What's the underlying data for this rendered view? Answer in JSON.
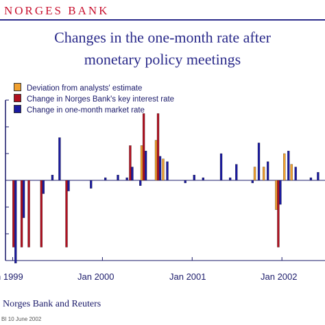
{
  "header": {
    "logo": "NORGES BANK",
    "title_line1": "Changes in the one-month rate after",
    "title_line2": "monetary policy meetings"
  },
  "legend": [
    {
      "label": "Deviation from analysts' estimate",
      "color": "#f0a030"
    },
    {
      "label": "Change in Norges Bank's key interest rate",
      "color": "#b01020"
    },
    {
      "label": "Change in one-month market rate",
      "color": "#1a1aa0"
    }
  ],
  "x_tick_labels": [
    "n 1999",
    "Jan 2000",
    "Jan 2001",
    "Jan 2002"
  ],
  "source_text": "Norges Bank and Reuters",
  "footnote_text": "BI 10 June 2002",
  "chart_data": {
    "type": "bar",
    "ylim": [
      -0.3,
      0.3
    ],
    "series_names": [
      "Deviation from analysts' estimate",
      "Change in Norges Bank's key interest rate",
      "Change in one-month market rate"
    ],
    "colors": [
      "#f0a030",
      "#b01020",
      "#1a1aa0"
    ],
    "meetings": [
      {
        "t": 1999.01,
        "dev": 0,
        "key": -0.25,
        "mkt": -0.31
      },
      {
        "t": 1999.1,
        "dev": 0,
        "key": -0.25,
        "mkt": -0.14
      },
      {
        "t": 1999.18,
        "dev": 0,
        "key": -0.25,
        "mkt": 0
      },
      {
        "t": 1999.32,
        "dev": 0,
        "key": -0.25,
        "mkt": -0.05
      },
      {
        "t": 1999.42,
        "dev": 0,
        "key": 0,
        "mkt": 0.02
      },
      {
        "t": 1999.5,
        "dev": 0,
        "key": 0,
        "mkt": 0.16
      },
      {
        "t": 1999.6,
        "dev": 0,
        "key": -0.25,
        "mkt": -0.04
      },
      {
        "t": 1999.85,
        "dev": 0,
        "key": 0,
        "mkt": -0.03
      },
      {
        "t": 2000.01,
        "dev": 0,
        "key": 0,
        "mkt": 0.01
      },
      {
        "t": 2000.15,
        "dev": 0,
        "key": 0,
        "mkt": 0.02
      },
      {
        "t": 2000.25,
        "dev": 0,
        "key": 0,
        "mkt": 0.01
      },
      {
        "t": 2000.31,
        "dev": 0,
        "key": 0.13,
        "mkt": 0.05
      },
      {
        "t": 2000.4,
        "dev": 0,
        "key": 0,
        "mkt": -0.02
      },
      {
        "t": 2000.46,
        "dev": 0.13,
        "key": 0.25,
        "mkt": 0.11
      },
      {
        "t": 2000.62,
        "dev": 0.15,
        "key": 0.25,
        "mkt": 0.09
      },
      {
        "t": 2000.7,
        "dev": 0.08,
        "key": 0,
        "mkt": 0.07
      },
      {
        "t": 2000.9,
        "dev": 0,
        "key": 0,
        "mkt": -0.01
      },
      {
        "t": 2001.0,
        "dev": 0,
        "key": 0,
        "mkt": 0.02
      },
      {
        "t": 2001.1,
        "dev": 0,
        "key": 0,
        "mkt": 0.01
      },
      {
        "t": 2001.3,
        "dev": 0,
        "key": 0,
        "mkt": 0.1
      },
      {
        "t": 2001.4,
        "dev": 0,
        "key": 0,
        "mkt": 0.01
      },
      {
        "t": 2001.47,
        "dev": 0,
        "key": 0,
        "mkt": 0.06
      },
      {
        "t": 2001.65,
        "dev": 0,
        "key": 0,
        "mkt": -0.01
      },
      {
        "t": 2001.72,
        "dev": 0.05,
        "key": 0,
        "mkt": 0.14
      },
      {
        "t": 2001.82,
        "dev": 0.05,
        "key": 0,
        "mkt": 0.07
      },
      {
        "t": 2001.96,
        "dev": -0.11,
        "key": -0.25,
        "mkt": -0.09
      },
      {
        "t": 2002.05,
        "dev": 0.1,
        "key": 0,
        "mkt": 0.11
      },
      {
        "t": 2002.13,
        "dev": 0.06,
        "key": 0,
        "mkt": 0.05
      },
      {
        "t": 2002.3,
        "dev": 0,
        "key": 0,
        "mkt": 0.01
      },
      {
        "t": 2002.38,
        "dev": 0,
        "key": 0,
        "mkt": 0.03
      }
    ]
  }
}
